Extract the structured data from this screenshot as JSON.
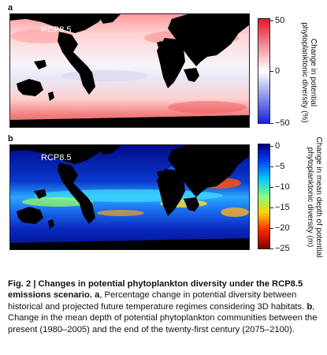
{
  "panel_a": {
    "label": "a",
    "scenario": "RCP8.5",
    "colorbar": {
      "ticks": [
        "50",
        "0",
        "−50"
      ],
      "title_line1": "Change in potential",
      "title_line2": "phytoplanktonic diversity (%)",
      "colors": [
        "#e8142c",
        "#ffffff",
        "#1822d8"
      ]
    }
  },
  "panel_b": {
    "label": "b",
    "scenario": "RCP8.5",
    "colorbar": {
      "ticks": [
        "0",
        "−5",
        "−10",
        "−15",
        "−20",
        "−25"
      ],
      "title_line1": "Change in mean depth of potential",
      "title_line2": "phytoplanktonic diversity (m)",
      "colors": [
        "#00007f",
        "#0040ff",
        "#00c8ff",
        "#80ff80",
        "#ffd000",
        "#ff2000",
        "#7f0000"
      ]
    }
  },
  "caption": {
    "fig": "Fig. 2 | Changes in potential phytoplankton diversity under the RCP8.5 emissions scenario.",
    "a_label": "a",
    "a_text": ", Percentage change in potential diversity between historical and projected future temperature regimes considering 3D habitats.",
    "b_label": "b",
    "b_text": ", Change in the mean depth of potential phytoplankton communities between the present (1980–2005) and the end of the twenty-first century (2075–2100)."
  }
}
